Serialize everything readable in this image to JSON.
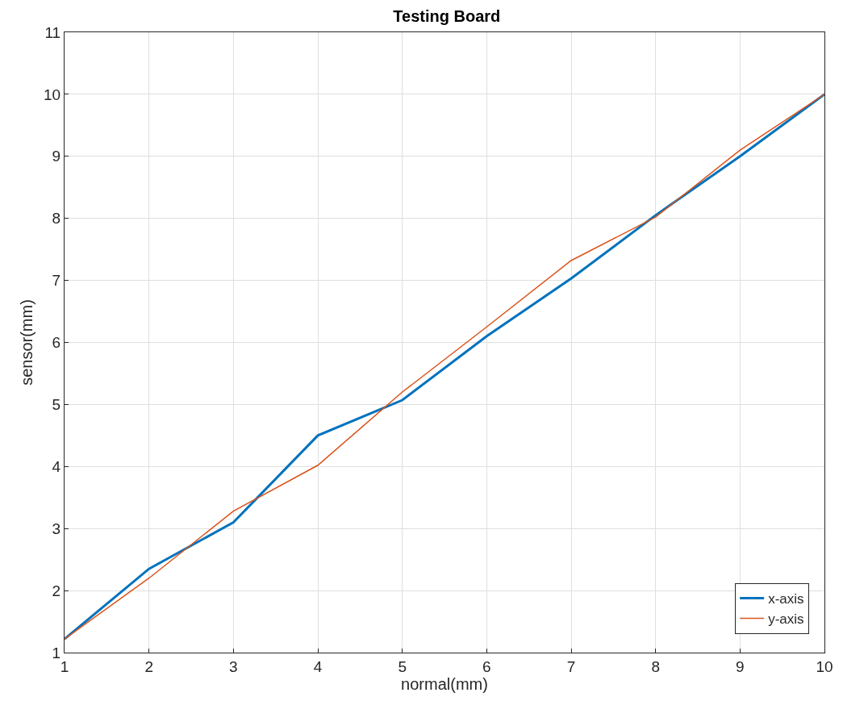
{
  "chart_data": {
    "type": "line",
    "title": "Testing Board",
    "xlabel": "normal(mm)",
    "ylabel": "sensor(mm)",
    "x": [
      1,
      2,
      3,
      4,
      5,
      6,
      7,
      8,
      9,
      10
    ],
    "series": [
      {
        "name": "x-axis",
        "color": "#0072bd",
        "values": [
          1.22,
          2.35,
          3.1,
          4.5,
          5.07,
          6.1,
          7.03,
          8.05,
          9.0,
          10.0
        ]
      },
      {
        "name": "y-axis",
        "color": "#d95319",
        "values": [
          1.22,
          2.2,
          3.28,
          4.02,
          5.2,
          6.25,
          7.32,
          8.02,
          9.1,
          10.0
        ]
      }
    ],
    "xlim": [
      1,
      10
    ],
    "xticks": [
      1,
      2,
      3,
      4,
      5,
      6,
      7,
      8,
      9,
      10
    ],
    "ylim": [
      1,
      11
    ],
    "yticks": [
      1,
      2,
      3,
      4,
      5,
      6,
      7,
      8,
      9,
      10,
      11
    ],
    "grid": true,
    "legend": "bottom right",
    "marker": "none",
    "line_style": "solid"
  }
}
